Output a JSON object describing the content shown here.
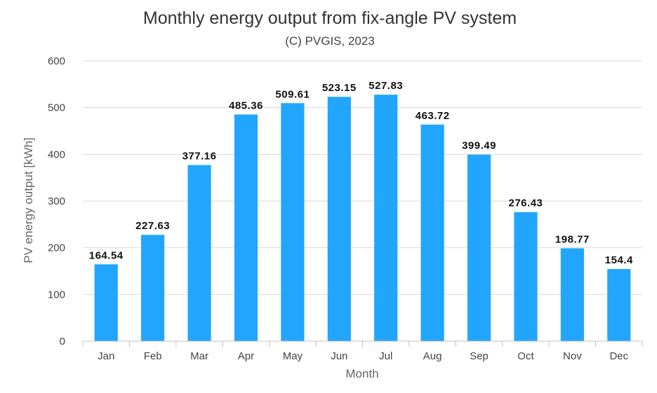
{
  "chart_data": {
    "type": "bar",
    "title": "Monthly energy output from fix-angle PV system",
    "subtitle": "(C) PVGIS, 2023",
    "xlabel": "Month",
    "ylabel": "PV energy output [kWh]",
    "ylim": [
      0,
      600
    ],
    "yticks": [
      0,
      100,
      200,
      300,
      400,
      500,
      600
    ],
    "grid": true,
    "legend": "none",
    "categories": [
      "Jan",
      "Feb",
      "Mar",
      "Apr",
      "May",
      "Jun",
      "Jul",
      "Aug",
      "Sep",
      "Oct",
      "Nov",
      "Dec"
    ],
    "values": [
      164.54,
      227.63,
      377.16,
      485.36,
      509.61,
      523.15,
      527.83,
      463.72,
      399.49,
      276.43,
      198.77,
      154.4
    ],
    "data_labels": [
      "164.54",
      "227.63",
      "377.16",
      "485.36",
      "509.61",
      "523.15",
      "527.83",
      "463.72",
      "399.49",
      "276.43",
      "198.77",
      "154.4"
    ],
    "bar_color": "#22a6fd"
  }
}
